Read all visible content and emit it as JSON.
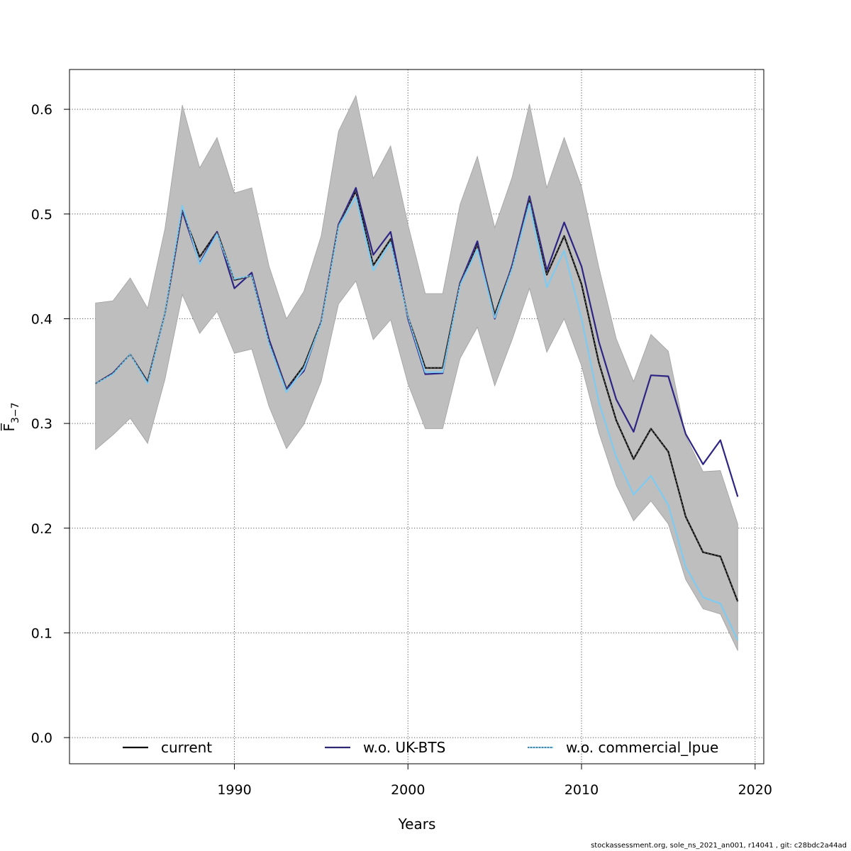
{
  "chart_data": {
    "type": "line",
    "xlabel": "Years",
    "ylabel": "F̅",
    "ylabel_sub": "3−7",
    "xlim": [
      1980.5,
      2020.5
    ],
    "ylim": [
      -0.025,
      0.638
    ],
    "xticks": [
      1990,
      2000,
      2010,
      2020
    ],
    "yticks": [
      0.0,
      0.1,
      0.2,
      0.3,
      0.4,
      0.5,
      0.6
    ],
    "ytick_labels": [
      "0.0",
      "0.1",
      "0.2",
      "0.3",
      "0.4",
      "0.5",
      "0.6"
    ],
    "grid": true,
    "legend_position": "bottom",
    "x": [
      1982,
      1983,
      1984,
      1985,
      1986,
      1987,
      1988,
      1989,
      1990,
      1991,
      1992,
      1993,
      1994,
      1995,
      1996,
      1997,
      1998,
      1999,
      2000,
      2001,
      2002,
      2003,
      2004,
      2005,
      2006,
      2007,
      2008,
      2009,
      2010,
      2011,
      2012,
      2013,
      2014,
      2015,
      2016,
      2017,
      2018,
      2019
    ],
    "band": {
      "color": "#bebebe",
      "lower": [
        0.275,
        0.289,
        0.305,
        0.281,
        0.342,
        0.423,
        0.386,
        0.407,
        0.367,
        0.371,
        0.316,
        0.276,
        0.299,
        0.34,
        0.414,
        0.436,
        0.38,
        0.399,
        0.338,
        0.295,
        0.295,
        0.362,
        0.392,
        0.336,
        0.38,
        0.429,
        0.368,
        0.4,
        0.355,
        0.291,
        0.241,
        0.207,
        0.226,
        0.204,
        0.151,
        0.123,
        0.118,
        0.083
      ],
      "upper": [
        0.415,
        0.417,
        0.439,
        0.41,
        0.486,
        0.604,
        0.544,
        0.573,
        0.52,
        0.525,
        0.45,
        0.4,
        0.426,
        0.479,
        0.579,
        0.613,
        0.534,
        0.565,
        0.49,
        0.424,
        0.424,
        0.509,
        0.555,
        0.487,
        0.535,
        0.605,
        0.525,
        0.573,
        0.526,
        0.449,
        0.381,
        0.34,
        0.385,
        0.369,
        0.288,
        0.254,
        0.255,
        0.204
      ]
    },
    "series": [
      {
        "name": "current",
        "color": "#000000",
        "style": "solid",
        "values": [
          0.338,
          0.348,
          0.366,
          0.34,
          0.405,
          0.503,
          0.459,
          0.483,
          0.437,
          0.441,
          0.378,
          0.333,
          0.355,
          0.397,
          0.49,
          0.522,
          0.451,
          0.476,
          0.402,
          0.353,
          0.353,
          0.434,
          0.471,
          0.404,
          0.45,
          0.515,
          0.442,
          0.479,
          0.433,
          0.358,
          0.303,
          0.266,
          0.295,
          0.273,
          0.211,
          0.177,
          0.173,
          0.13
        ]
      },
      {
        "name": "w.o. UK-BTS",
        "color": "#2d2484",
        "style": "solid",
        "values": [
          0.338,
          0.348,
          0.366,
          0.339,
          0.405,
          0.503,
          0.453,
          0.483,
          0.429,
          0.444,
          0.38,
          0.333,
          0.35,
          0.397,
          0.49,
          0.525,
          0.461,
          0.483,
          0.4,
          0.347,
          0.348,
          0.434,
          0.474,
          0.4,
          0.451,
          0.517,
          0.446,
          0.492,
          0.45,
          0.378,
          0.323,
          0.292,
          0.346,
          0.345,
          0.29,
          0.261,
          0.284,
          0.23
        ]
      },
      {
        "name": "w.o. commercial_lpue",
        "color": "#7ecbf2",
        "style": "solid",
        "values": [
          0.338,
          0.347,
          0.366,
          0.338,
          0.405,
          0.508,
          0.452,
          0.481,
          0.438,
          0.441,
          0.376,
          0.33,
          0.352,
          0.396,
          0.488,
          0.516,
          0.446,
          0.473,
          0.402,
          0.349,
          0.349,
          0.432,
          0.466,
          0.401,
          0.448,
          0.51,
          0.43,
          0.465,
          0.4,
          0.32,
          0.268,
          0.232,
          0.25,
          0.222,
          0.163,
          0.134,
          0.128,
          0.093
        ]
      }
    ]
  },
  "footer": "stockassessment.org, sole_ns_2021_an001, r14041 , git: c28bdc2a44ad"
}
